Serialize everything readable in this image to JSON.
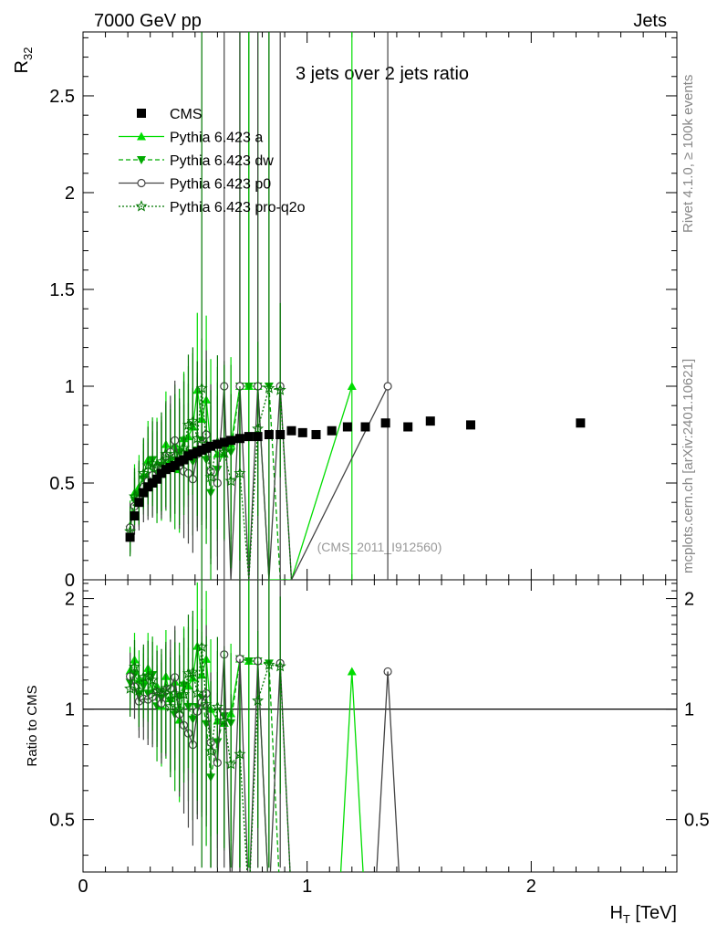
{
  "header": {
    "left": "7000 GeV pp",
    "right": "Jets",
    "watermark_top": "Rivet 4.1.0, ≥ 100k events",
    "watermark_bottom": "mcplots.cern.ch [arXiv:2401.10621]",
    "analysis_tag": "(CMS_2011_I912560)"
  },
  "chart_data": [
    {
      "type": "scatter",
      "title": "3 jets over 2 jets ratio",
      "ylabel": "R32",
      "xlim": [
        0,
        2.65
      ],
      "ylim": [
        0,
        2.83
      ],
      "yticks": [
        "0",
        "0.5",
        "1",
        "1.5",
        "2",
        "2.5"
      ],
      "legend": [
        "CMS",
        "Pythia 6.423 a",
        "Pythia 6.423 dw",
        "Pythia 6.423 p0",
        "Pythia 6.423 pro-q2o"
      ],
      "legend_position": "top-left",
      "series": [
        {
          "name": "CMS",
          "color": "#000000",
          "marker": "square",
          "x": [
            0.21,
            0.23,
            0.25,
            0.27,
            0.29,
            0.31,
            0.33,
            0.35,
            0.37,
            0.39,
            0.41,
            0.43,
            0.45,
            0.47,
            0.49,
            0.51,
            0.53,
            0.55,
            0.57,
            0.6,
            0.63,
            0.66,
            0.7,
            0.74,
            0.78,
            0.83,
            0.88,
            0.93,
            0.98,
            1.04,
            1.11,
            1.18,
            1.26,
            1.35,
            1.45,
            1.55,
            1.73,
            2.22
          ],
          "y": [
            0.22,
            0.33,
            0.4,
            0.45,
            0.48,
            0.5,
            0.52,
            0.55,
            0.57,
            0.58,
            0.59,
            0.61,
            0.62,
            0.64,
            0.65,
            0.66,
            0.67,
            0.68,
            0.69,
            0.7,
            0.71,
            0.72,
            0.73,
            0.74,
            0.74,
            0.75,
            0.75,
            0.77,
            0.76,
            0.75,
            0.77,
            0.79,
            0.79,
            0.81,
            0.79,
            0.82,
            0.8,
            0.81
          ]
        },
        {
          "name": "Pythia 6.423 a",
          "color": "#00dd00",
          "marker": "triangle-up",
          "line": "solid",
          "x": [
            0.21,
            0.23,
            0.25,
            0.27,
            0.29,
            0.31,
            0.33,
            0.35,
            0.37,
            0.39,
            0.41,
            0.43,
            0.45,
            0.47,
            0.49,
            0.51,
            0.53,
            0.55,
            0.57,
            0.6,
            0.63,
            0.66,
            0.7,
            0.74,
            0.78,
            0.83,
            0.88,
            0.93,
            1.2
          ],
          "y": [
            0.28,
            0.45,
            0.48,
            0.54,
            0.62,
            0.55,
            0.6,
            0.56,
            0.7,
            0.62,
            0.7,
            0.57,
            0.73,
            0.74,
            0.79,
            0.98,
            0.83,
            0.93,
            0.69,
            0.65,
            0.65,
            0.7,
            1.0,
            1.0,
            1.0,
            0.0,
            0.0,
            0.0,
            1.0
          ]
        },
        {
          "name": "Pythia 6.423 dw",
          "color": "#00aa00",
          "marker": "triangle-down",
          "line": "dashed",
          "x": [
            0.21,
            0.23,
            0.25,
            0.27,
            0.29,
            0.31,
            0.33,
            0.35,
            0.37,
            0.39,
            0.41,
            0.43,
            0.45,
            0.47,
            0.49,
            0.51,
            0.53,
            0.55,
            0.57,
            0.6,
            0.63,
            0.66,
            0.7,
            0.74,
            0.78,
            0.83,
            0.88,
            0.93
          ],
          "y": [
            0.26,
            0.41,
            0.44,
            0.52,
            0.53,
            0.62,
            0.53,
            0.59,
            0.63,
            0.61,
            0.57,
            0.66,
            0.72,
            0.65,
            0.61,
            0.67,
            0.72,
            0.62,
            0.45,
            0.57,
            0.68,
            0.66,
            1.0,
            1.0,
            1.0,
            1.0,
            0.0,
            0.0
          ]
        },
        {
          "name": "Pythia 6.423 p0",
          "color": "#444444",
          "marker": "circle-open",
          "line": "solid",
          "x": [
            0.21,
            0.23,
            0.25,
            0.27,
            0.29,
            0.31,
            0.33,
            0.35,
            0.37,
            0.39,
            0.41,
            0.43,
            0.45,
            0.47,
            0.49,
            0.51,
            0.53,
            0.55,
            0.57,
            0.6,
            0.63,
            0.66,
            0.7,
            0.74,
            0.78,
            0.83,
            0.88,
            0.93,
            1.36
          ],
          "y": [
            0.27,
            0.38,
            0.42,
            0.48,
            0.51,
            0.54,
            0.58,
            0.57,
            0.64,
            0.66,
            0.72,
            0.59,
            0.56,
            0.55,
            0.52,
            0.65,
            0.7,
            0.75,
            0.56,
            0.5,
            1.0,
            0.0,
            1.0,
            0.0,
            1.0,
            0.0,
            1.0,
            0.0,
            1.0
          ]
        },
        {
          "name": "Pythia 6.423 pro-q2o",
          "color": "#007700",
          "marker": "star",
          "line": "dotted",
          "x": [
            0.21,
            0.23,
            0.25,
            0.27,
            0.29,
            0.31,
            0.33,
            0.35,
            0.37,
            0.39,
            0.41,
            0.43,
            0.45,
            0.47,
            0.49,
            0.51,
            0.53,
            0.55,
            0.57,
            0.6,
            0.63,
            0.66,
            0.7,
            0.74,
            0.78,
            0.83,
            0.88,
            0.93
          ],
          "y": [
            0.25,
            0.43,
            0.45,
            0.55,
            0.59,
            0.6,
            0.58,
            0.61,
            0.65,
            0.59,
            0.65,
            0.61,
            0.68,
            0.8,
            0.82,
            0.73,
            0.99,
            0.7,
            0.53,
            0.71,
            0.66,
            0.51,
            0.55,
            0.0,
            0.78,
            0.99,
            0.98,
            0.0
          ]
        }
      ]
    },
    {
      "type": "line",
      "ylabel": "Ratio to CMS",
      "xlabel": "H_T [TeV]",
      "xlim": [
        0,
        2.65
      ],
      "ylim": [
        0.36,
        2.25
      ],
      "xticks": [
        "0",
        "1",
        "2"
      ],
      "yticks": [
        "0.5",
        "1",
        "2"
      ],
      "reference_line": 1
    }
  ]
}
